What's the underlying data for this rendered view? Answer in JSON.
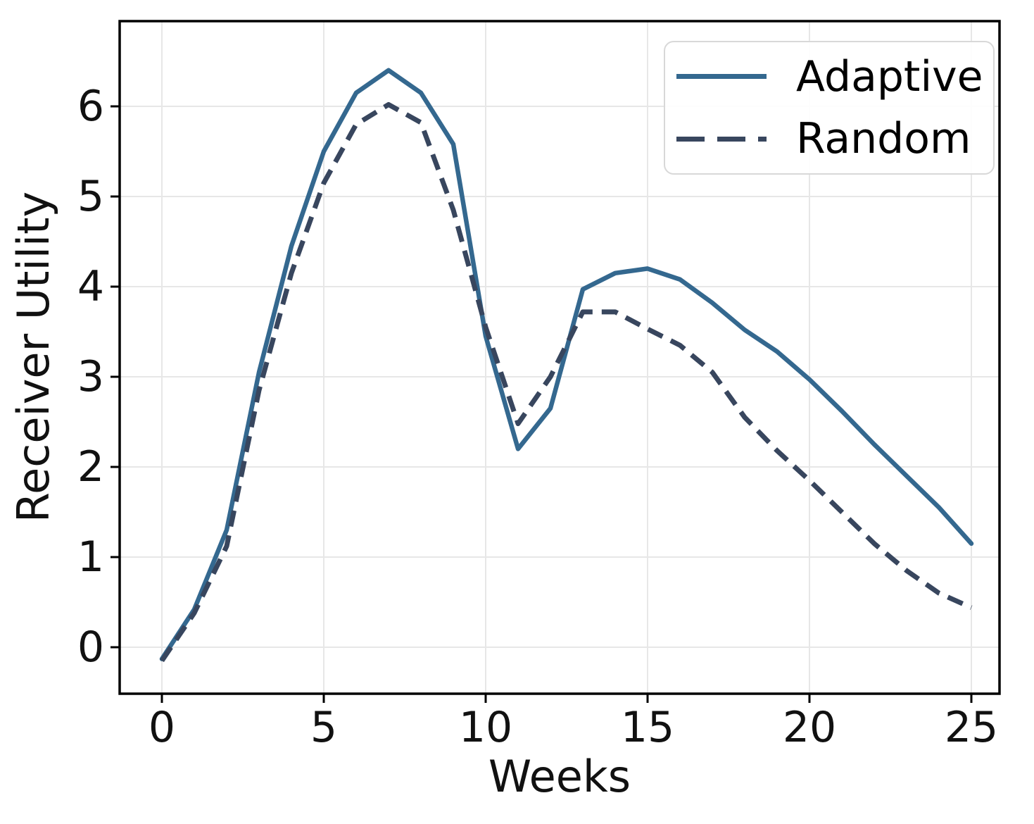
{
  "chart_data": {
    "type": "line",
    "title": "",
    "xlabel": "Weeks",
    "ylabel": "Receiver Utility",
    "x": [
      0,
      1,
      2,
      3,
      4,
      5,
      6,
      7,
      8,
      9,
      10,
      11,
      12,
      13,
      14,
      15,
      16,
      17,
      18,
      19,
      20,
      21,
      22,
      23,
      24,
      25
    ],
    "series": [
      {
        "name": "Adaptive",
        "style": "solid",
        "color": "#34688f",
        "values": [
          -0.13,
          0.42,
          1.3,
          3.05,
          4.45,
          5.5,
          6.15,
          6.4,
          6.15,
          5.58,
          3.45,
          2.2,
          2.65,
          3.97,
          4.15,
          4.2,
          4.08,
          3.82,
          3.52,
          3.28,
          2.97,
          2.62,
          2.25,
          1.9,
          1.55,
          1.15
        ]
      },
      {
        "name": "Random",
        "style": "dashed",
        "color": "#38465e",
        "values": [
          -0.15,
          0.38,
          1.12,
          2.85,
          4.15,
          5.15,
          5.8,
          6.02,
          5.82,
          4.85,
          3.55,
          2.48,
          3.0,
          3.72,
          3.72,
          3.53,
          3.35,
          3.05,
          2.55,
          2.18,
          1.85,
          1.5,
          1.15,
          0.85,
          0.6,
          0.44
        ]
      }
    ],
    "x_ticks": [
      0,
      5,
      10,
      15,
      20,
      25
    ],
    "y_ticks": [
      0,
      1,
      2,
      3,
      4,
      5,
      6
    ],
    "xlim": [
      -1.3,
      25.9
    ],
    "ylim": [
      -0.52,
      6.95
    ],
    "grid": true,
    "legend": {
      "position": "upper right",
      "entries": [
        "Adaptive",
        "Random"
      ]
    },
    "colors": {
      "grid": "#e7e7e7",
      "spine": "#000000",
      "tick_text": "#111111"
    }
  }
}
